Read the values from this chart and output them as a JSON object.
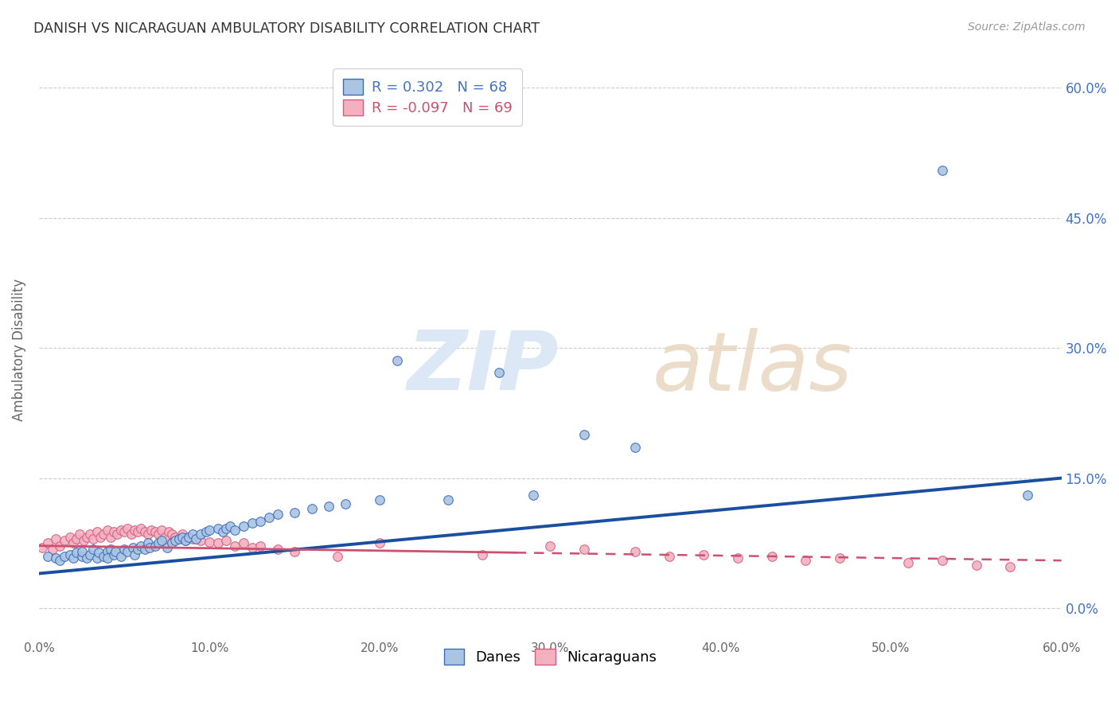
{
  "title": "DANISH VS NICARAGUAN AMBULATORY DISABILITY CORRELATION CHART",
  "source": "Source: ZipAtlas.com",
  "xlabel_ticks": [
    "0.0%",
    "10.0%",
    "20.0%",
    "30.0%",
    "40.0%",
    "50.0%",
    "60.0%"
  ],
  "ylabel_label": "Ambulatory Disability",
  "ylabel_ticks_right": [
    "60.0%",
    "45.0%",
    "30.0%",
    "15.0%",
    "0.0%"
  ],
  "ylabel_ticks_vals": [
    0.6,
    0.45,
    0.3,
    0.15,
    0.0
  ],
  "xlim": [
    0.0,
    0.6
  ],
  "ylim": [
    -0.035,
    0.63
  ],
  "legend_r_danes": " 0.302",
  "legend_n_danes": "68",
  "legend_r_nicaraguans": "-0.097",
  "legend_n_nicaraguans": "69",
  "danes_color": "#aac4e2",
  "danes_edge_color": "#3a6bbf",
  "danes_line_color": "#1a4fa0",
  "nicaraguans_color": "#f5b0c0",
  "nicaraguans_edge_color": "#d06080",
  "nicaraguans_line_color": "#cc5070",
  "danes_line_x0": 0.0,
  "danes_line_y0": 0.04,
  "danes_line_x1": 0.6,
  "danes_line_y1": 0.15,
  "nic_line_x0": 0.0,
  "nic_line_y0": 0.072,
  "nic_line_x1": 0.6,
  "nic_line_y1": 0.055,
  "danes_scatter_x": [
    0.005,
    0.01,
    0.012,
    0.015,
    0.018,
    0.02,
    0.022,
    0.025,
    0.025,
    0.028,
    0.03,
    0.032,
    0.034,
    0.035,
    0.038,
    0.04,
    0.04,
    0.042,
    0.044,
    0.045,
    0.048,
    0.05,
    0.052,
    0.055,
    0.056,
    0.058,
    0.06,
    0.062,
    0.064,
    0.065,
    0.068,
    0.07,
    0.072,
    0.075,
    0.078,
    0.08,
    0.082,
    0.084,
    0.086,
    0.088,
    0.09,
    0.092,
    0.095,
    0.098,
    0.1,
    0.105,
    0.108,
    0.11,
    0.112,
    0.115,
    0.12,
    0.125,
    0.13,
    0.135,
    0.14,
    0.15,
    0.16,
    0.17,
    0.18,
    0.2,
    0.21,
    0.24,
    0.27,
    0.29,
    0.32,
    0.35,
    0.53,
    0.58
  ],
  "danes_scatter_y": [
    0.06,
    0.058,
    0.055,
    0.06,
    0.062,
    0.058,
    0.064,
    0.06,
    0.065,
    0.058,
    0.062,
    0.068,
    0.058,
    0.064,
    0.06,
    0.065,
    0.058,
    0.068,
    0.062,
    0.065,
    0.06,
    0.068,
    0.065,
    0.07,
    0.062,
    0.068,
    0.072,
    0.068,
    0.075,
    0.07,
    0.072,
    0.075,
    0.078,
    0.07,
    0.075,
    0.078,
    0.08,
    0.082,
    0.078,
    0.082,
    0.085,
    0.08,
    0.085,
    0.088,
    0.09,
    0.092,
    0.088,
    0.092,
    0.095,
    0.09,
    0.095,
    0.098,
    0.1,
    0.105,
    0.108,
    0.11,
    0.115,
    0.118,
    0.12,
    0.125,
    0.285,
    0.125,
    0.272,
    0.13,
    0.2,
    0.185,
    0.505,
    0.13
  ],
  "nicaraguans_scatter_x": [
    0.002,
    0.005,
    0.008,
    0.01,
    0.012,
    0.015,
    0.018,
    0.02,
    0.022,
    0.024,
    0.026,
    0.028,
    0.03,
    0.032,
    0.034,
    0.036,
    0.038,
    0.04,
    0.042,
    0.044,
    0.046,
    0.048,
    0.05,
    0.052,
    0.054,
    0.056,
    0.058,
    0.06,
    0.062,
    0.064,
    0.066,
    0.068,
    0.07,
    0.072,
    0.074,
    0.076,
    0.078,
    0.08,
    0.082,
    0.084,
    0.086,
    0.088,
    0.09,
    0.095,
    0.1,
    0.105,
    0.11,
    0.115,
    0.12,
    0.125,
    0.13,
    0.14,
    0.15,
    0.175,
    0.2,
    0.26,
    0.3,
    0.32,
    0.35,
    0.37,
    0.39,
    0.41,
    0.43,
    0.45,
    0.47,
    0.51,
    0.53,
    0.55,
    0.57
  ],
  "nicaraguans_scatter_y": [
    0.07,
    0.075,
    0.068,
    0.08,
    0.072,
    0.078,
    0.082,
    0.075,
    0.08,
    0.085,
    0.078,
    0.082,
    0.085,
    0.08,
    0.088,
    0.082,
    0.085,
    0.09,
    0.082,
    0.088,
    0.085,
    0.09,
    0.088,
    0.092,
    0.085,
    0.09,
    0.088,
    0.092,
    0.088,
    0.085,
    0.09,
    0.088,
    0.085,
    0.09,
    0.082,
    0.088,
    0.085,
    0.082,
    0.08,
    0.085,
    0.078,
    0.082,
    0.08,
    0.078,
    0.076,
    0.075,
    0.078,
    0.072,
    0.075,
    0.07,
    0.072,
    0.068,
    0.065,
    0.06,
    0.075,
    0.062,
    0.072,
    0.068,
    0.065,
    0.06,
    0.062,
    0.058,
    0.06,
    0.055,
    0.058,
    0.052,
    0.055,
    0.05,
    0.048
  ]
}
